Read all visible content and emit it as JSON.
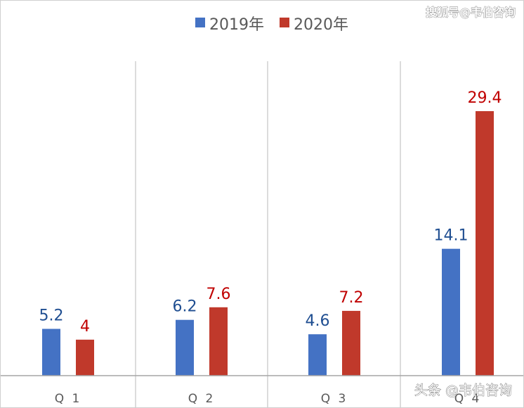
{
  "chart_data": {
    "type": "bar",
    "categories": [
      "Q1",
      "Q2",
      "Q3",
      "Q4"
    ],
    "category_display": [
      "Q 1",
      "Q 2",
      "Q 3",
      "Q 4"
    ],
    "series": [
      {
        "name": "2019年",
        "values": [
          5.2,
          6.2,
          4.6,
          14.1
        ],
        "labels": [
          "5.2",
          "6.2",
          "4.6",
          "14.1"
        ],
        "color": "#4472C4",
        "label_color": "#1F4E91"
      },
      {
        "name": "2020年",
        "values": [
          4,
          7.6,
          7.2,
          29.4
        ],
        "labels": [
          "4",
          "7.6",
          "7.2",
          "29.4"
        ],
        "color": "#C0392B",
        "label_color": "#C00000"
      }
    ],
    "ylim": [
      0,
      29.4
    ],
    "grid": false,
    "legend_position": "top-center",
    "title": "",
    "xlabel": "",
    "ylabel": ""
  },
  "watermarks": {
    "top": "搜狐号@韦伯咨询",
    "bottom": "头条 @韦伯咨询"
  }
}
